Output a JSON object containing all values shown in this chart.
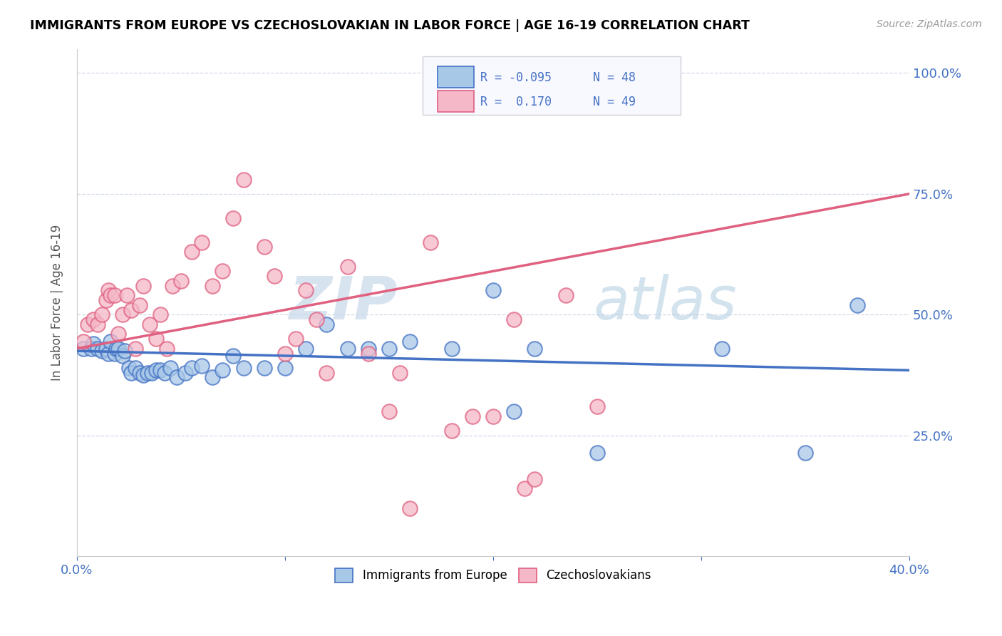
{
  "title": "IMMIGRANTS FROM EUROPE VS CZECHOSLOVAKIAN IN LABOR FORCE | AGE 16-19 CORRELATION CHART",
  "source": "Source: ZipAtlas.com",
  "ylabel": "In Labor Force | Age 16-19",
  "xlim": [
    0.0,
    0.4
  ],
  "ylim": [
    0.0,
    1.05
  ],
  "ytick_positions": [
    0.25,
    0.5,
    0.75,
    1.0
  ],
  "ytick_labels": [
    "25.0%",
    "50.0%",
    "75.0%",
    "100.0%"
  ],
  "legend_r_blue": "-0.095",
  "legend_n_blue": "48",
  "legend_r_pink": "0.170",
  "legend_n_pink": "49",
  "blue_fill": "#a8c8e8",
  "pink_fill": "#f4b8c8",
  "blue_edge": "#4472c4",
  "pink_edge": "#e06080",
  "blue_line": "#4472c4",
  "pink_line": "#e06080",
  "watermark_zip": "ZIP",
  "watermark_atlas": "atlas",
  "blue_scatter_x": [
    0.003,
    0.007,
    0.008,
    0.01,
    0.012,
    0.014,
    0.015,
    0.016,
    0.018,
    0.019,
    0.02,
    0.022,
    0.023,
    0.025,
    0.026,
    0.028,
    0.03,
    0.032,
    0.034,
    0.036,
    0.038,
    0.04,
    0.042,
    0.045,
    0.048,
    0.052,
    0.055,
    0.06,
    0.065,
    0.07,
    0.075,
    0.08,
    0.09,
    0.1,
    0.11,
    0.12,
    0.13,
    0.14,
    0.15,
    0.16,
    0.18,
    0.2,
    0.21,
    0.22,
    0.25,
    0.31,
    0.35,
    0.375
  ],
  "blue_scatter_y": [
    0.43,
    0.43,
    0.44,
    0.43,
    0.425,
    0.43,
    0.42,
    0.445,
    0.42,
    0.43,
    0.43,
    0.415,
    0.425,
    0.39,
    0.38,
    0.39,
    0.38,
    0.375,
    0.38,
    0.38,
    0.385,
    0.385,
    0.38,
    0.39,
    0.37,
    0.38,
    0.39,
    0.395,
    0.37,
    0.385,
    0.415,
    0.39,
    0.39,
    0.39,
    0.43,
    0.48,
    0.43,
    0.43,
    0.43,
    0.445,
    0.43,
    0.55,
    0.3,
    0.43,
    0.215,
    0.43,
    0.215,
    0.52
  ],
  "pink_scatter_x": [
    0.003,
    0.005,
    0.008,
    0.01,
    0.012,
    0.014,
    0.015,
    0.016,
    0.018,
    0.02,
    0.022,
    0.024,
    0.026,
    0.028,
    0.03,
    0.032,
    0.035,
    0.038,
    0.04,
    0.043,
    0.046,
    0.05,
    0.055,
    0.06,
    0.065,
    0.07,
    0.075,
    0.08,
    0.09,
    0.095,
    0.1,
    0.105,
    0.11,
    0.115,
    0.12,
    0.13,
    0.14,
    0.15,
    0.155,
    0.16,
    0.17,
    0.18,
    0.19,
    0.2,
    0.21,
    0.215,
    0.22,
    0.235,
    0.25
  ],
  "pink_scatter_y": [
    0.445,
    0.48,
    0.49,
    0.48,
    0.5,
    0.53,
    0.55,
    0.54,
    0.54,
    0.46,
    0.5,
    0.54,
    0.51,
    0.43,
    0.52,
    0.56,
    0.48,
    0.45,
    0.5,
    0.43,
    0.56,
    0.57,
    0.63,
    0.65,
    0.56,
    0.59,
    0.7,
    0.78,
    0.64,
    0.58,
    0.42,
    0.45,
    0.55,
    0.49,
    0.38,
    0.6,
    0.42,
    0.3,
    0.38,
    0.1,
    0.65,
    0.26,
    0.29,
    0.29,
    0.49,
    0.14,
    0.16,
    0.54,
    0.31
  ]
}
